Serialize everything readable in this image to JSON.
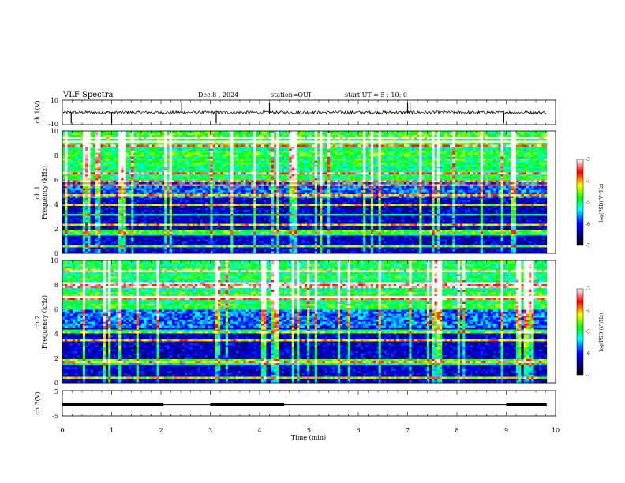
{
  "header": {
    "title": "VLF Spectra",
    "date": "Dec.8 , 2024",
    "station": "station=OUI",
    "start": "start UT = 5 : 10: 0"
  },
  "chart_data": [
    {
      "id": "ch1-waveform",
      "type": "line",
      "ylabel": "ch.1(V)",
      "ylim": [
        -10,
        10
      ],
      "yticks": [
        "10",
        "-10"
      ],
      "baseline": 0,
      "noise_amplitude": 1.2,
      "spikes_down_min": [
        0.18,
        1.0,
        3.12,
        8.95
      ],
      "spikes_up_min": [
        2.42,
        4.2,
        7.0,
        7.05
      ]
    },
    {
      "id": "ch1-spectrogram",
      "type": "heatmap",
      "ylabel_line1": "ch.1",
      "ylabel_line2": "Frequency (kHz)",
      "ylim": [
        0,
        10
      ],
      "yticks": [
        "0",
        "2",
        "4",
        "6",
        "8",
        "10"
      ],
      "colorbar_label": "log(PSD)(V²/Hz)",
      "colorbar_range": [
        -7,
        -3
      ],
      "colorbar_ticks": [
        "-3",
        "-4",
        "-5",
        "-6",
        "-7"
      ]
    },
    {
      "id": "ch2-spectrogram",
      "type": "heatmap",
      "ylabel_line1": "ch.2",
      "ylabel_line2": "Frequency (kHz)",
      "ylim": [
        0,
        10
      ],
      "yticks": [
        "0",
        "2",
        "4",
        "6",
        "8",
        "10"
      ],
      "colorbar_label": "log(PSD)(V²/Hz)",
      "colorbar_range": [
        -7,
        -3
      ],
      "colorbar_ticks": [
        "-3",
        "-4",
        "-5",
        "-6",
        "-7"
      ]
    },
    {
      "id": "ch3-waveform",
      "type": "line",
      "ylabel": "ch.3(V)",
      "ylim": [
        -5,
        5
      ],
      "yticks": [
        "5",
        "-5"
      ],
      "level_v": -0.5,
      "thick_segments_min": [
        [
          0,
          2.05
        ],
        [
          3.0,
          4.5
        ],
        [
          9.0,
          9.82
        ]
      ]
    }
  ],
  "time_axis": {
    "xlabel": "Time (min)",
    "xlim": [
      0,
      10
    ],
    "data_end_min": 9.82,
    "ticks": [
      "0",
      "1",
      "2",
      "3",
      "4",
      "5",
      "6",
      "7",
      "8",
      "9",
      "10"
    ]
  }
}
